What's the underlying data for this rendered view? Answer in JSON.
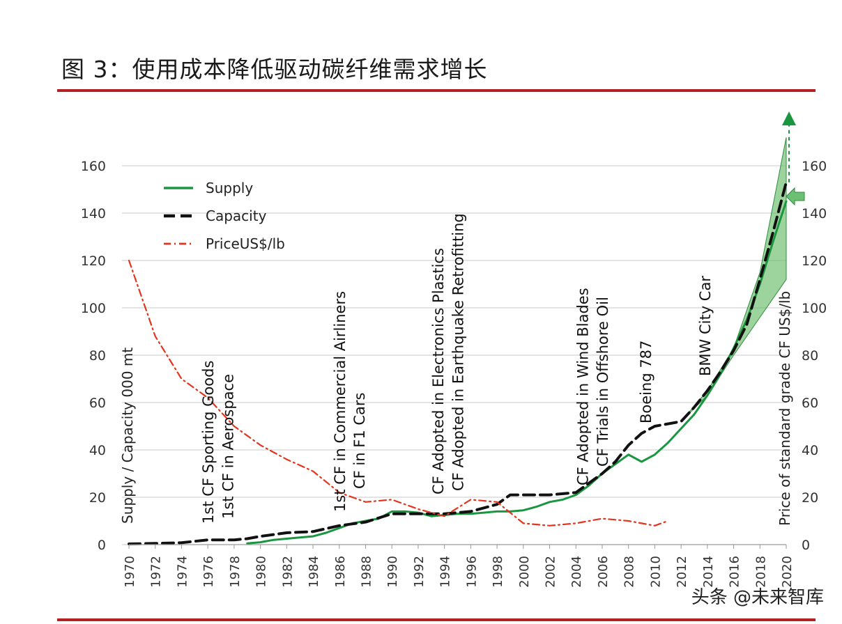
{
  "title": "图 3：使用成本降低驱动碳纤维需求增长",
  "watermark": "头条 @未来智库",
  "chart_data": {
    "type": "line",
    "ylabel": "Supply / Capacity 000 mt",
    "y2label": "Price of standard grade CF US$/lb",
    "xlim": [
      1970,
      2020
    ],
    "ylim": [
      0,
      160
    ],
    "y2lim": [
      0,
      160
    ],
    "x_ticks": [
      1970,
      1972,
      1974,
      1976,
      1978,
      1980,
      1982,
      1984,
      1986,
      1988,
      1990,
      1992,
      1994,
      1996,
      1998,
      2000,
      2002,
      2004,
      2006,
      2008,
      2010,
      2012,
      2014,
      2016,
      2018,
      2020
    ],
    "x_tick_labels": [
      "1970",
      "1972",
      "1974",
      "1976",
      "1978",
      "1980",
      "1982",
      "1984",
      "1986",
      "1988",
      "1990",
      "1992",
      "1994",
      "1996",
      "1998",
      "2000",
      "2002",
      "2004",
      "2006",
      "2008",
      "2010",
      "2012",
      "2014",
      "2016",
      "2018",
      "2020"
    ],
    "y_ticks": [
      0,
      20,
      40,
      60,
      80,
      100,
      120,
      140,
      160
    ],
    "y_tick_labels": [
      "0",
      "20",
      "40",
      "60",
      "80",
      "100",
      "120",
      "140",
      "160"
    ],
    "y2_tick_labels": [
      "0",
      "20",
      "40",
      "60",
      "80",
      "100",
      "120",
      "140",
      "160"
    ],
    "grid": "horizontal",
    "legend_position": "top-left",
    "series": [
      {
        "name": "Supply",
        "color": "#1a9641",
        "style": "solid",
        "x": [
          1979,
          1980,
          1981,
          1982,
          1983,
          1984,
          1985,
          1986,
          1987,
          1988,
          1989,
          1990,
          1991,
          1992,
          1993,
          1994,
          1995,
          1996,
          1997,
          1998,
          1999,
          2000,
          2001,
          2002,
          2003,
          2004,
          2005,
          2006,
          2007,
          2008,
          2009,
          2010,
          2011,
          2012,
          2013,
          2014,
          2015,
          2016,
          2017,
          2018,
          2019,
          2020
        ],
        "y": [
          0.5,
          1,
          2,
          2.5,
          3,
          3.5,
          5,
          7,
          9,
          10,
          11,
          14,
          14,
          13.5,
          12,
          12.5,
          13,
          13,
          13.5,
          14,
          14,
          14.5,
          16,
          18,
          19,
          21,
          25,
          30,
          34,
          38,
          35,
          38,
          43,
          49,
          55,
          63,
          72,
          83,
          95,
          110,
          128,
          145
        ]
      },
      {
        "name": "Capacity",
        "color": "#111111",
        "style": "dashed",
        "x": [
          1970,
          1972,
          1974,
          1976,
          1978,
          1979,
          1980,
          1982,
          1984,
          1986,
          1988,
          1990,
          1992,
          1994,
          1996,
          1998,
          1999,
          2000,
          2002,
          2004,
          2005,
          2006,
          2007,
          2008,
          2009,
          2010,
          2011,
          2012,
          2013,
          2014,
          2015,
          2016,
          2017,
          2018,
          2019,
          2020
        ],
        "y": [
          0.3,
          0.5,
          0.8,
          2,
          2,
          2.5,
          3.5,
          5,
          5.5,
          8,
          9.5,
          13,
          13,
          13,
          14,
          17,
          21,
          21,
          21,
          22,
          26,
          30,
          35,
          42,
          47,
          50,
          51,
          52,
          58,
          65,
          73,
          82,
          93,
          112,
          132,
          153
        ]
      },
      {
        "name": "PriceUS$/lb",
        "color": "#e3341e",
        "style": "dashdot",
        "x": [
          1970,
          1972,
          1974,
          1976,
          1978,
          1980,
          1982,
          1984,
          1986,
          1988,
          1990,
          1992,
          1994,
          1996,
          1998,
          2000,
          2002,
          2004,
          2006,
          2008,
          2010,
          2011
        ],
        "y": [
          120,
          88,
          70,
          62,
          50,
          42,
          36,
          31,
          22,
          18,
          19,
          15,
          12,
          19,
          18,
          9,
          8,
          9,
          11,
          10,
          8,
          10
        ]
      }
    ],
    "projection_band": {
      "x": [
        2012,
        2014,
        2016,
        2018,
        2020
      ],
      "upper": [
        52,
        65,
        83,
        115,
        172
      ],
      "lower": [
        52,
        63,
        80,
        96,
        112
      ]
    },
    "annotations": [
      {
        "text": "1st CF Sporting Goods",
        "x": 1976
      },
      {
        "text": "1st CF in Aerospace",
        "x": 1977.5
      },
      {
        "text": "1st CF in Commercial Airliners",
        "x": 1986
      },
      {
        "text": "CF in F1 Cars",
        "x": 1987.5
      },
      {
        "text": "CF Adopted in Electronics Plastics",
        "x": 1993.5
      },
      {
        "text": "CF Adopted in Earthquake Retrofitting",
        "x": 1995
      },
      {
        "text": "CF Adopted in Wind Blades",
        "x": 2004.5
      },
      {
        "text": "CF Trials in Offshore Oil",
        "x": 2006
      },
      {
        "text": "Boeing 787",
        "x": 2009.3
      },
      {
        "text": "BMW City Car",
        "x": 2013.8
      }
    ]
  }
}
